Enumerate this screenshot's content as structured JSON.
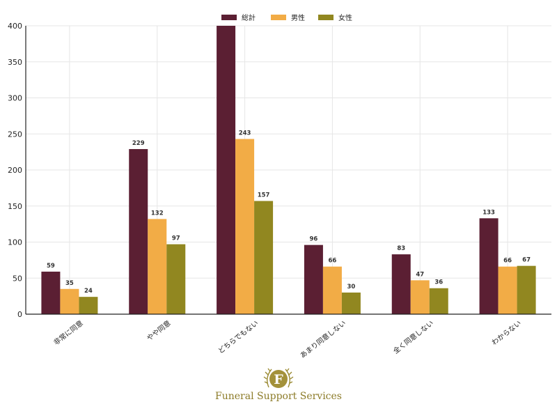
{
  "chart_data": {
    "type": "bar",
    "categories": [
      "非常に同意",
      "やや同意",
      "どちらでもない",
      "あまり同意しない",
      "全く同意しない",
      "わからない"
    ],
    "series": [
      {
        "name": "総計",
        "color": "#5b1f33",
        "values": [
          59,
          229,
          400,
          96,
          83,
          133
        ]
      },
      {
        "name": "男性",
        "color": "#f2ac46",
        "values": [
          35,
          132,
          243,
          66,
          47,
          66
        ]
      },
      {
        "name": "女性",
        "color": "#918720",
        "values": [
          24,
          97,
          157,
          30,
          36,
          67
        ]
      }
    ],
    "data_labels": [
      [
        "59",
        "229",
        "",
        "96",
        "83",
        "133"
      ],
      [
        "35",
        "132",
        "243",
        "66",
        "47",
        "66"
      ],
      [
        "24",
        "97",
        "157",
        "30",
        "36",
        "67"
      ]
    ],
    "title": "",
    "xlabel": "",
    "ylabel": "",
    "ylim": [
      0,
      400
    ],
    "yticks": [
      0,
      50,
      100,
      150,
      200,
      250,
      300,
      350,
      400
    ],
    "grid": true,
    "legend_position": "top-center"
  },
  "logo": {
    "letter": "F",
    "text": "Funeral Support Services",
    "color": "#8c7b28"
  }
}
